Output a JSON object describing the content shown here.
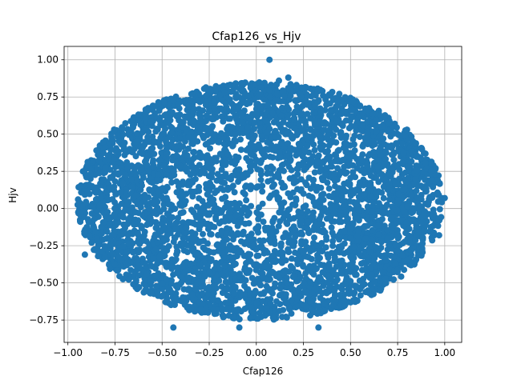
{
  "chart_data": {
    "type": "scatter",
    "title": "Cfap126_vs_Hjv",
    "xlabel": "Cfap126",
    "ylabel": "Hjv",
    "xlim": [
      -1.02,
      1.09
    ],
    "ylim": [
      -0.9,
      1.09
    ],
    "xticks": [
      -1.0,
      -0.75,
      -0.5,
      -0.25,
      0.0,
      0.25,
      0.5,
      0.75,
      1.0
    ],
    "xtick_labels": [
      "−1.00",
      "−0.75",
      "−0.50",
      "−0.25",
      "0.00",
      "0.25",
      "0.50",
      "0.75",
      "1.00"
    ],
    "yticks": [
      -0.75,
      -0.5,
      -0.25,
      0.0,
      0.25,
      0.5,
      0.75,
      1.0
    ],
    "ytick_labels": [
      "−0.75",
      "−0.50",
      "−0.25",
      "0.00",
      "0.25",
      "0.50",
      "0.75",
      "1.00"
    ],
    "grid": true,
    "marker_color": "#1f77b4",
    "point_cloud": {
      "center": [
        0.02,
        0.05
      ],
      "x_half_width": 0.97,
      "y_half_height": 0.8,
      "approx_point_count": 20000
    },
    "outlier_points": [
      {
        "x": 0.07,
        "y": 1.0
      },
      {
        "x": 0.12,
        "y": 0.86
      },
      {
        "x": 0.17,
        "y": 0.88
      },
      {
        "x": -0.92,
        "y": 0.25
      },
      {
        "x": -0.91,
        "y": -0.31
      },
      {
        "x": -0.92,
        "y": -0.02
      },
      {
        "x": 1.0,
        "y": 0.07
      },
      {
        "x": -0.44,
        "y": -0.8
      },
      {
        "x": 0.33,
        "y": -0.8
      },
      {
        "x": -0.09,
        "y": -0.8
      },
      {
        "x": 0.8,
        "y": 0.53
      },
      {
        "x": -0.83,
        "y": 0.35
      },
      {
        "x": -0.84,
        "y": -0.32
      },
      {
        "x": 0.97,
        "y": -0.18
      }
    ]
  }
}
